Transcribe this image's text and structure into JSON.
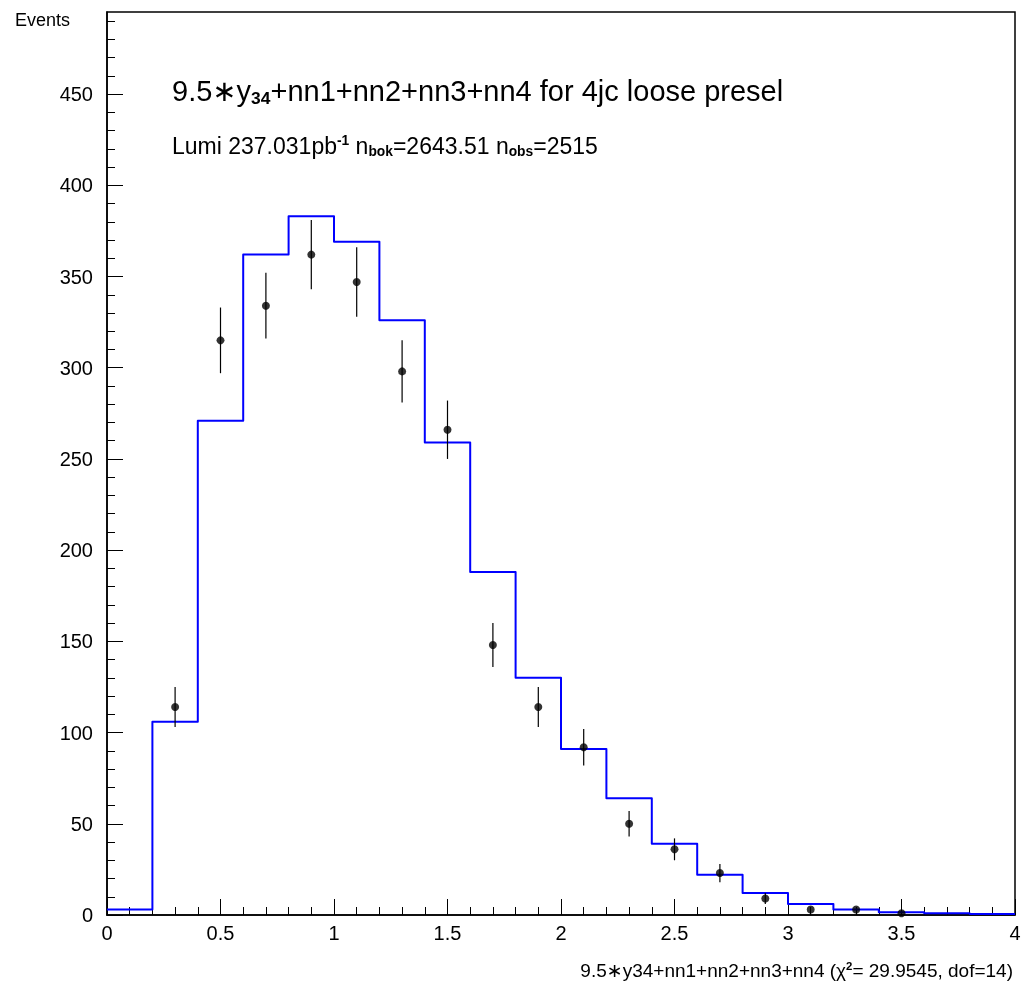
{
  "chart_data": {
    "type": "histogram",
    "title": "9.5∗y$_{34}$+nn1+nn2+nn3+nn4 for 4jc loose presel",
    "subtitle": "Lumi 237.031pb$^{-1}$ n$_{bok}$=2643.51 n$_{obs}$=2515",
    "xlabel": "9.5∗y34+nn1+nn2+nn3+nn4 (χ$^{2}$= 29.9545, dof=14)",
    "ylabel": "Events",
    "bins": [
      0,
      0.2,
      0.4,
      0.6,
      0.8,
      1.0,
      1.2,
      1.4,
      1.6,
      1.8,
      2.0,
      2.2,
      2.4,
      2.6,
      2.8,
      3.0,
      3.2,
      3.4,
      3.6,
      3.8,
      4.0
    ],
    "series": [
      {
        "type": "histogram",
        "color": "#0000ff",
        "values": [
          3,
          106,
          271,
          362,
          383,
          369,
          326,
          259,
          188,
          130,
          91,
          64,
          39,
          22,
          12,
          6,
          3,
          1.5,
          1,
          0.5
        ]
      },
      {
        "type": "scatter",
        "color": "#000000",
        "marker": "circle",
        "x": [
          0.3,
          0.5,
          0.7,
          0.9,
          1.1,
          1.3,
          1.5,
          1.7,
          1.9,
          2.1,
          2.3,
          2.5,
          2.7,
          2.9,
          3.1,
          3.3,
          3.5
        ],
        "values": [
          114,
          315,
          334,
          362,
          347,
          298,
          266,
          148,
          114,
          92,
          50,
          36,
          23,
          9,
          3,
          3,
          1
        ],
        "errors": [
          11,
          18,
          18,
          19,
          19,
          17,
          16,
          12,
          11,
          10,
          7,
          6,
          5,
          3,
          null,
          null,
          null
        ]
      }
    ],
    "xlim": [
      0,
      4
    ],
    "xticks": [
      0,
      0.5,
      1,
      1.5,
      2,
      2.5,
      3,
      3.5,
      4
    ],
    "ylim": [
      0,
      495
    ],
    "yticks": [
      0,
      50,
      100,
      150,
      200,
      250,
      300,
      350,
      400,
      450
    ],
    "grid": false
  }
}
